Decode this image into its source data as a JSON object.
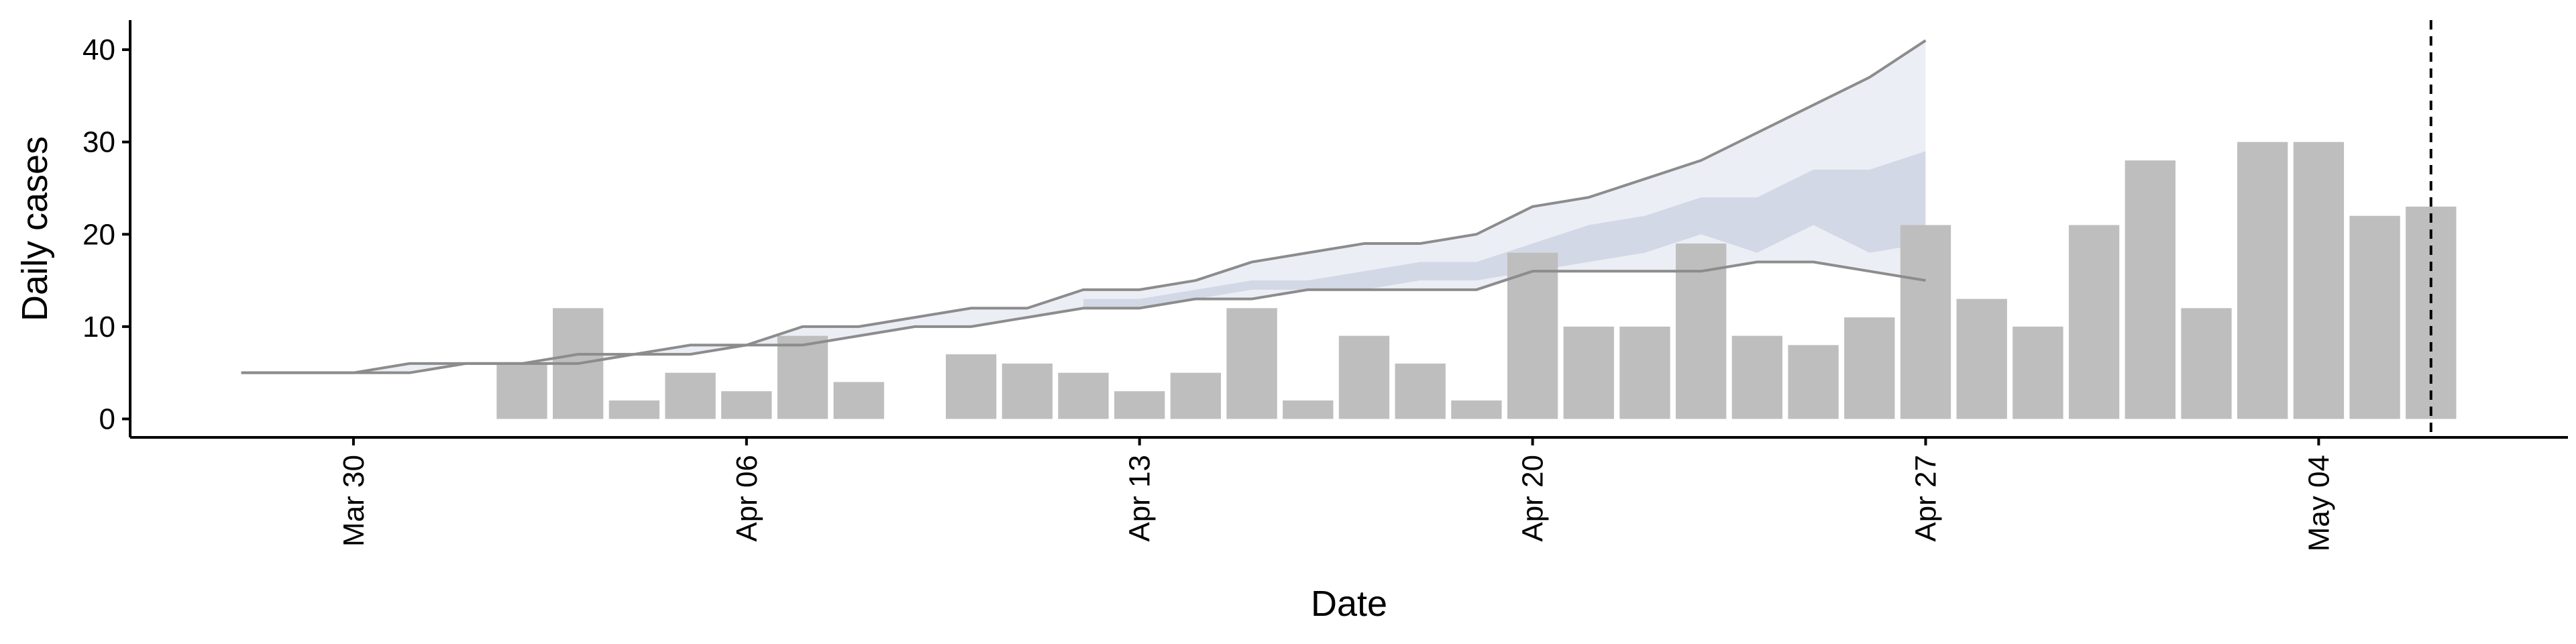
{
  "chart_data": {
    "type": "bar",
    "x_label": "Date",
    "y_label": "Daily cases",
    "categories": [
      null,
      null,
      "Mar 30",
      null,
      null,
      null,
      null,
      null,
      null,
      "Apr 06",
      null,
      null,
      null,
      null,
      null,
      null,
      "Apr 13",
      null,
      null,
      null,
      null,
      null,
      null,
      "Apr 20",
      null,
      null,
      null,
      null,
      null,
      null,
      "Apr 27",
      null,
      null,
      null,
      null,
      null,
      null,
      "May 04",
      null,
      null
    ],
    "ylim": [
      -2,
      43.2
    ],
    "yticks": [
      0,
      10,
      20,
      30,
      40
    ],
    "series": [
      {
        "type": "band",
        "color": "#eceef5",
        "line_color": "#8c8c8c",
        "upper": [
          5,
          5,
          5,
          6,
          6,
          6,
          7,
          7,
          8,
          8,
          10,
          10,
          11,
          12,
          12,
          14,
          14,
          15,
          17,
          18,
          19,
          19,
          20,
          23,
          24,
          26,
          28,
          31,
          34,
          37,
          41,
          null,
          null,
          null,
          null,
          null,
          null,
          null,
          null,
          null
        ],
        "lower": [
          5,
          5,
          5,
          5,
          6,
          6,
          6,
          7,
          7,
          8,
          8,
          9,
          10,
          10,
          11,
          12,
          12,
          13,
          13,
          14,
          14,
          14,
          14,
          16,
          16,
          16,
          16,
          17,
          17,
          16,
          15,
          null,
          null,
          null,
          null,
          null,
          null,
          null,
          null,
          null
        ]
      },
      {
        "type": "band",
        "color": "#d3d8e6",
        "upper": [
          null,
          null,
          null,
          null,
          null,
          null,
          null,
          null,
          null,
          null,
          null,
          null,
          null,
          null,
          null,
          13,
          13,
          14,
          15,
          15,
          16,
          17,
          17,
          19,
          21,
          22,
          24,
          24,
          27,
          27,
          29,
          null,
          null,
          null,
          null,
          null,
          null,
          null,
          null,
          null
        ],
        "lower": [
          null,
          null,
          null,
          null,
          null,
          null,
          null,
          null,
          null,
          null,
          null,
          null,
          null,
          null,
          null,
          12,
          12,
          13,
          14,
          14,
          14,
          15,
          15,
          16,
          17,
          18,
          20,
          18,
          21,
          18,
          19,
          null,
          null,
          null,
          null,
          null,
          null,
          null,
          null,
          null
        ]
      },
      {
        "type": "bar",
        "color": "#bebebe",
        "values": [
          null,
          null,
          null,
          null,
          null,
          6,
          12,
          2,
          5,
          3,
          9,
          4,
          null,
          7,
          6,
          5,
          3,
          5,
          12,
          2,
          9,
          6,
          2,
          18,
          10,
          10,
          19,
          9,
          8,
          11,
          21,
          13,
          10,
          21,
          28,
          12,
          30,
          30,
          22,
          23
        ]
      }
    ]
  }
}
